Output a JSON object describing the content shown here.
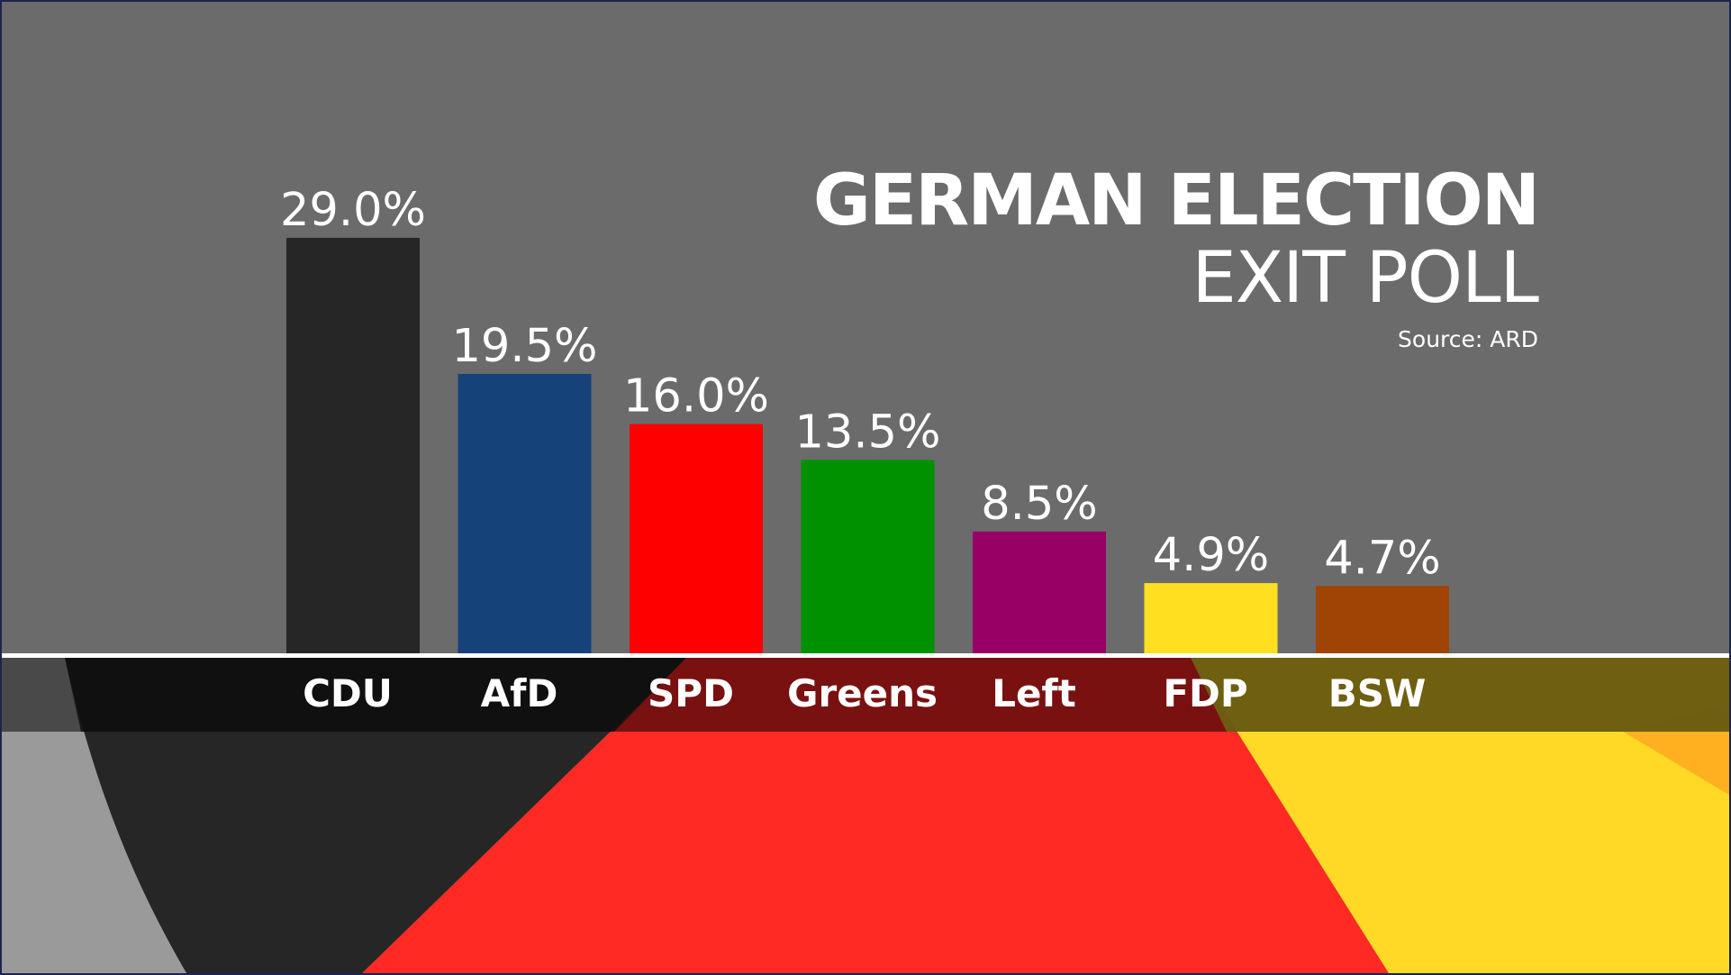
{
  "title": {
    "main": "GERMAN ELECTION",
    "sub": "EXIT POLL",
    "source": "Source: ARD"
  },
  "colors": {
    "background": "#6b6b6b",
    "band_black": "#262626",
    "band_red": "#ff2a24",
    "band_gold": "#ffd926"
  },
  "chart_data": {
    "type": "bar",
    "categories": [
      "CDU",
      "AfD",
      "SPD",
      "Greens",
      "Left",
      "FDP",
      "BSW"
    ],
    "values": [
      29.0,
      19.5,
      16.0,
      13.5,
      8.5,
      4.9,
      4.7
    ],
    "value_labels": [
      "29.0%",
      "19.5%",
      "16.0%",
      "13.5%",
      "8.5%",
      "4.9%",
      "4.7%"
    ],
    "colors": [
      "#262626",
      "#16427a",
      "#ff0000",
      "#009100",
      "#990066",
      "#ffdf20",
      "#a04405"
    ],
    "title": "GERMAN ELECTION EXIT POLL",
    "subtitle": "Source: ARD",
    "xlabel": "",
    "ylabel": "",
    "ylim": [
      0,
      29.0
    ],
    "grid": false,
    "legend": "none"
  }
}
